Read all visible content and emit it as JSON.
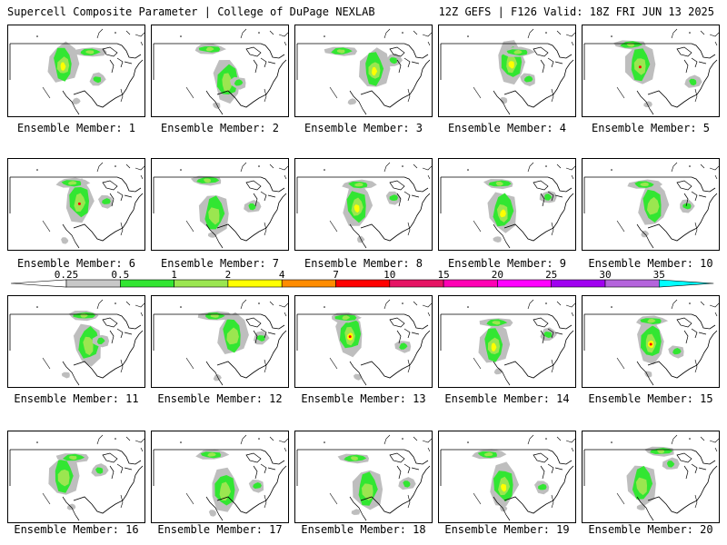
{
  "header": {
    "left": "Supercell Composite Parameter | College of DuPage NEXLAB",
    "right": "12Z GEFS | F126 Valid: 18Z FRI JUN 13 2025"
  },
  "member_label_prefix": "Ensemble Member: ",
  "members": [
    1,
    2,
    3,
    4,
    5,
    6,
    7,
    8,
    9,
    10,
    11,
    12,
    13,
    14,
    15,
    16,
    17,
    18,
    19,
    20
  ],
  "colorbar": {
    "labels": [
      "0.25",
      "0.5",
      "1",
      "2",
      "4",
      "7",
      "10",
      "15",
      "20",
      "25",
      "30",
      "35"
    ],
    "colors": [
      "#ffffff",
      "#c8c8c8",
      "#32e632",
      "#9be650",
      "#ffff00",
      "#ff8c00",
      "#ff0000",
      "#e61464",
      "#ff00b4",
      "#ff00ff",
      "#a000f0",
      "#b464dc",
      "#00ffff"
    ]
  },
  "map_colors": {
    "coast": "#000000",
    "border": "#000000",
    "gray": "#bebebe",
    "green": "#32e632",
    "light_green": "#9be650",
    "yellow": "#ffff00",
    "red": "#ff0000"
  }
}
